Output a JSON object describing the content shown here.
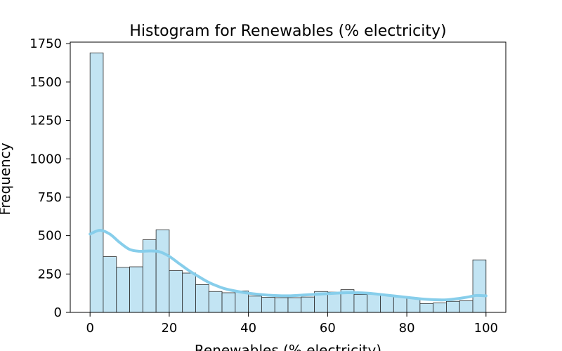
{
  "chart_data": {
    "type": "bar",
    "title": "Histogram for Renewables (% electricity)",
    "xlabel": "Renewables (% electricity)",
    "ylabel": "Frequency",
    "xlim": [
      -5,
      105
    ],
    "ylim": [
      0,
      1760
    ],
    "x_ticks": [
      0,
      20,
      40,
      60,
      80,
      100
    ],
    "y_ticks": [
      0,
      250,
      500,
      750,
      1000,
      1250,
      1500,
      1750
    ],
    "bin_edges": [
      0,
      3.33,
      6.67,
      10,
      13.33,
      16.67,
      20,
      23.33,
      26.67,
      30,
      33.33,
      36.67,
      40,
      43.33,
      46.67,
      50,
      53.33,
      56.67,
      60,
      63.33,
      66.67,
      70,
      73.33,
      76.67,
      80,
      83.33,
      86.67,
      90,
      93.33,
      96.67,
      100
    ],
    "counts": [
      1690,
      363,
      293,
      297,
      473,
      538,
      272,
      256,
      181,
      136,
      128,
      140,
      106,
      98,
      96,
      96,
      100,
      136,
      132,
      148,
      116,
      118,
      112,
      100,
      92,
      58,
      62,
      72,
      76,
      342
    ],
    "kde": {
      "x": [
        0,
        2.5,
        5,
        7.5,
        10,
        12.5,
        15,
        17.5,
        20,
        22.5,
        25,
        27.5,
        30,
        32.5,
        35,
        40,
        45,
        50,
        55,
        60,
        65,
        70,
        75,
        80,
        85,
        90,
        95,
        97.5,
        100
      ],
      "y": [
        510,
        535,
        510,
        455,
        410,
        398,
        400,
        395,
        365,
        318,
        272,
        232,
        195,
        168,
        148,
        125,
        112,
        108,
        115,
        122,
        128,
        125,
        112,
        98,
        85,
        82,
        98,
        110,
        108
      ]
    },
    "bar_color": "#c2e4f3",
    "bar_edge_color": "#2b2b2b",
    "kde_color": "#87ceeb",
    "grid": false,
    "legend": "none"
  }
}
